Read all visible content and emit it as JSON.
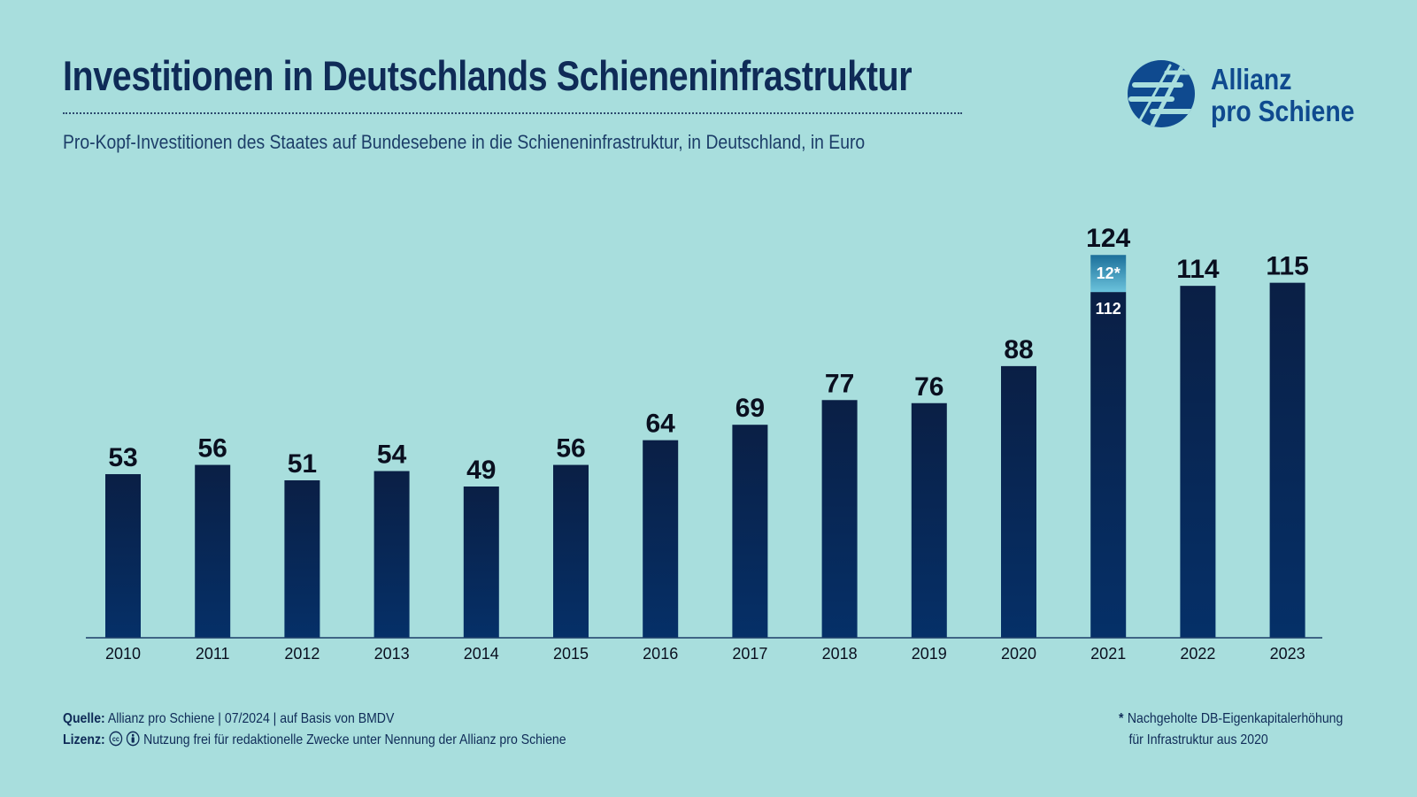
{
  "title": "Investitionen in Deutschlands Schieneninfrastruktur",
  "subtitle": "Pro-Kopf-Investitionen des Staates auf Bundesebene in die Schieneninfrastruktur, in Deutschland, in Euro",
  "logo": {
    "line1": "Allianz",
    "line2": "pro Schiene"
  },
  "footer": {
    "source_label": "Quelle:",
    "source_text": "Allianz pro Schiene | 07/2024 | auf Basis von BMDV",
    "license_label": "Lizenz:",
    "license_text": "Nutzung frei für redaktionelle Zwecke unter Nennung der Allianz pro Schiene",
    "footnote_star": "*",
    "footnote_line1": "Nachgeholte DB-Eigenkapitalerhöhung",
    "footnote_line2": "für Infrastruktur aus 2020"
  },
  "colors": {
    "background": "#a8dedd",
    "bar_top": "#0a1f45",
    "bar_bottom": "#053068",
    "highlight_top": "#1b6f9a",
    "highlight_bottom": "#6cc3dc",
    "text": "#0f2b57",
    "brand": "#0f4a8f"
  },
  "chart_data": {
    "type": "bar",
    "categories": [
      "2010",
      "2011",
      "2012",
      "2013",
      "2014",
      "2015",
      "2016",
      "2017",
      "2018",
      "2019",
      "2020",
      "2021",
      "2022",
      "2023"
    ],
    "values": [
      53,
      56,
      51,
      54,
      49,
      56,
      64,
      69,
      77,
      76,
      88,
      124,
      114,
      115
    ],
    "value_labels": [
      "53",
      "56",
      "51",
      "54",
      "49",
      "56",
      "64",
      "69",
      "77",
      "76",
      "88",
      "124",
      "114",
      "115"
    ],
    "stacked_detail": {
      "2021": {
        "base": 112,
        "base_label": "112",
        "extra": 12,
        "extra_label": "12*"
      }
    },
    "ylim": [
      0,
      130
    ],
    "xlabel": "",
    "ylabel": "",
    "grid": false
  }
}
